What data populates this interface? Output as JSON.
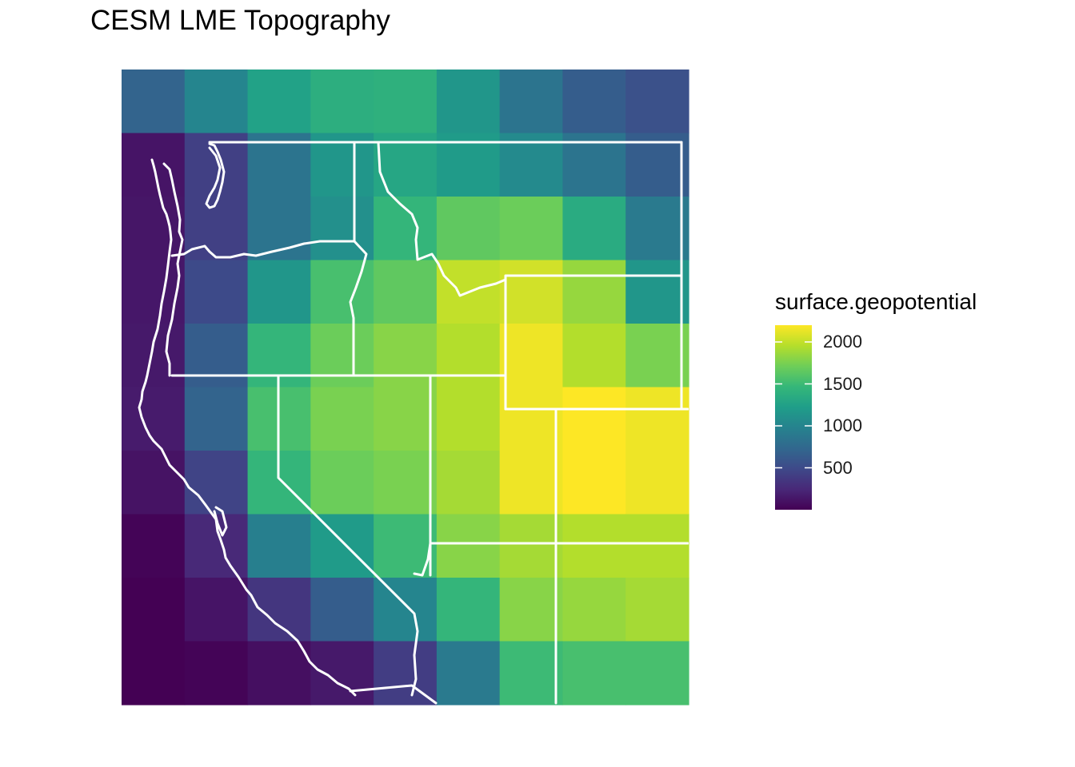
{
  "title": "CESM LME Topography",
  "legend": {
    "title": "surface.geopotential",
    "ticks": [
      {
        "label": "2000",
        "value": 2000
      },
      {
        "label": "1500",
        "value": 1500
      },
      {
        "label": "1000",
        "value": 1000
      },
      {
        "label": "500",
        "value": 500
      }
    ],
    "range": [
      0,
      2200
    ],
    "palette": [
      "#440154",
      "#482878",
      "#3e4989",
      "#31688e",
      "#26828e",
      "#1f9e89",
      "#35b779",
      "#6ece58",
      "#b5de2b",
      "#fde725"
    ]
  },
  "chart_data": {
    "type": "heatmap",
    "title": "CESM LME Topography",
    "xlabel": "",
    "ylabel": "",
    "fill_label": "surface.geopotential",
    "columns": 9,
    "rows": 10,
    "values": [
      [
        700,
        1000,
        1260,
        1380,
        1400,
        1150,
        850,
        650,
        550
      ],
      [
        120,
        420,
        850,
        1150,
        1300,
        1200,
        1050,
        850,
        650
      ],
      [
        130,
        420,
        850,
        1100,
        1450,
        1650,
        1700,
        1350,
        900
      ],
      [
        140,
        500,
        1150,
        1550,
        1650,
        2000,
        2050,
        1850,
        1150
      ],
      [
        150,
        650,
        1450,
        1700,
        1800,
        1950,
        2150,
        1950,
        1750
      ],
      [
        160,
        700,
        1550,
        1750,
        1800,
        1950,
        2150,
        2200,
        2150
      ],
      [
        110,
        450,
        1450,
        1700,
        1750,
        1900,
        2150,
        2200,
        2150
      ],
      [
        20,
        250,
        950,
        1200,
        1500,
        1800,
        1900,
        1950,
        1950
      ],
      [
        0,
        120,
        350,
        650,
        1000,
        1450,
        1800,
        1850,
        1900
      ],
      [
        0,
        20,
        90,
        150,
        400,
        900,
        1500,
        1550,
        1550
      ]
    ],
    "borders": "US west coast state outlines (WA, OR, CA, ID, NV, UT, MT, WY)"
  }
}
